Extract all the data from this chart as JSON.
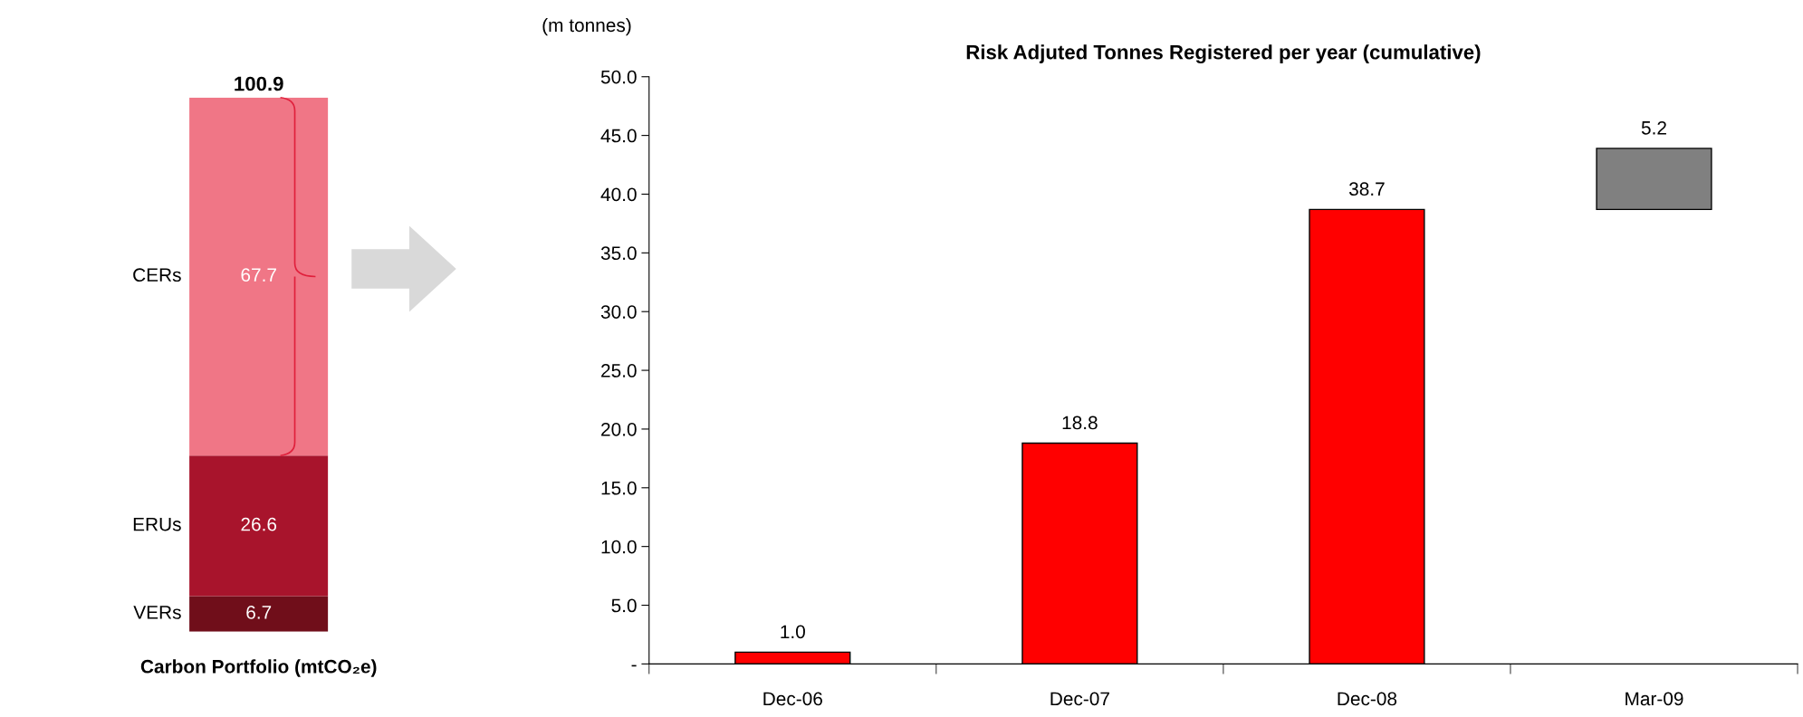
{
  "chart_data": [
    {
      "type": "bar",
      "stacked": true,
      "categories": [
        "Carbon Portfolio (mtCO₂e)"
      ],
      "series": [
        {
          "name": "VERs",
          "color": "#700e1a",
          "values": [
            6.7
          ],
          "value_labels": [
            "6.7"
          ]
        },
        {
          "name": "ERUs",
          "color": "#a8142c",
          "values": [
            26.6
          ],
          "value_labels": [
            "26.6"
          ]
        },
        {
          "name": "CERs",
          "color": "#f07686",
          "values": [
            67.7
          ],
          "value_labels": [
            "67.7"
          ]
        }
      ],
      "totals": [
        "100.9"
      ],
      "tick_labels": "x",
      "legend": false
    },
    {
      "type": "bar",
      "title": "Risk Adjuted Tonnes Registered per year (cumulative)",
      "ylabel": "(m tonnes)",
      "categories": [
        "Dec-06",
        "Dec-07",
        "Dec-08",
        "Mar-09"
      ],
      "values": [
        1.0,
        18.8,
        38.7,
        5.2
      ],
      "base": [
        0,
        0,
        0,
        38.7
      ],
      "colors": [
        "#ff0000",
        "#ff0000",
        "#ff0000",
        "#808080"
      ],
      "value_labels": [
        "1.0",
        "18.8",
        "38.7",
        "5.2"
      ],
      "ylim": [
        0,
        50
      ],
      "yticks": [
        {
          "value": 0,
          "label": "-"
        },
        {
          "value": 5,
          "label": "5.0"
        },
        {
          "value": 10,
          "label": "10.0"
        },
        {
          "value": 15,
          "label": "15.0"
        },
        {
          "value": 20,
          "label": "20.0"
        },
        {
          "value": 25,
          "label": "25.0"
        },
        {
          "value": 30,
          "label": "30.0"
        },
        {
          "value": 35,
          "label": "35.0"
        },
        {
          "value": 40,
          "label": "40.0"
        },
        {
          "value": 45,
          "label": "45.0"
        },
        {
          "value": 50,
          "label": "50.0"
        }
      ],
      "grid": false,
      "legend": false
    }
  ]
}
